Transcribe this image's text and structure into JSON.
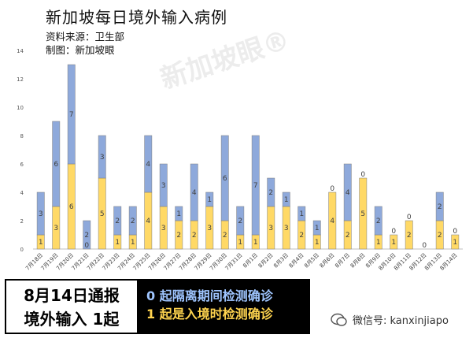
{
  "header": {
    "title": "新加坡每日境外输入病例",
    "source": "资料来源：卫生部",
    "maker": "制图：新加坡眼"
  },
  "watermark": "新加坡眼®",
  "footer": {
    "date_line1": "8月14日通报",
    "date_line2": "境外输入 1起",
    "legend_blue": "0 起隔离期间检测确诊",
    "legend_yellow": "1 起是入境时检测确诊"
  },
  "wechat": {
    "label": "微信号: kanxinjiapo"
  },
  "colors": {
    "blue": "#8ea9db",
    "yellow": "#ffd966",
    "axis": "#bfbfbf"
  },
  "chart_data": {
    "type": "bar",
    "stacked": true,
    "title": "新加坡每日境外输入病例",
    "ylim": [
      0,
      14
    ],
    "yticks": [
      0,
      2,
      4,
      6,
      8,
      10,
      12,
      14
    ],
    "categories": [
      "7月18日",
      "7月19日",
      "7月20日",
      "7月21日",
      "7月22日",
      "7月23日",
      "7月24日",
      "7月25日",
      "7月26日",
      "7月27日",
      "7月28日",
      "7月29日",
      "7月30日",
      "7月31日",
      "8月1日",
      "8月2日",
      "8月3日",
      "8月4日",
      "8月5日",
      "8月6日",
      "8月7日",
      "8月8日",
      "8月9日",
      "8月10日",
      "8月11日",
      "8月12日",
      "8月13日",
      "8月14日"
    ],
    "series": [
      {
        "name": "入境时检测确诊",
        "color": "#ffd966",
        "values": [
          1,
          3,
          6,
          0,
          5,
          1,
          1,
          4,
          3,
          2,
          2,
          3,
          2,
          1,
          1,
          3,
          3,
          2,
          1,
          4,
          2,
          5,
          1,
          1,
          2,
          0,
          2,
          1
        ]
      },
      {
        "name": "隔离期间检测确诊",
        "color": "#8ea9db",
        "values": [
          3,
          6,
          7,
          2,
          3,
          2,
          2,
          4,
          3,
          1,
          4,
          1,
          6,
          2,
          7,
          2,
          1,
          1,
          1,
          0,
          4,
          0,
          2,
          0,
          0,
          0,
          2,
          0
        ]
      }
    ],
    "grid": false
  }
}
